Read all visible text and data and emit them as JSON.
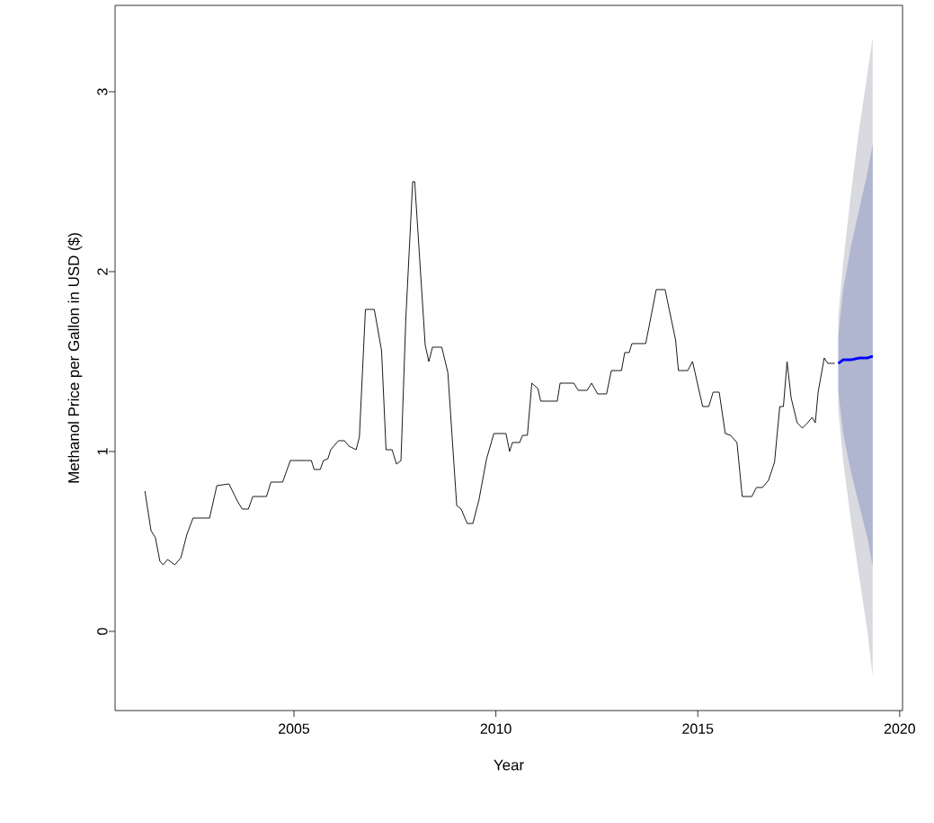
{
  "chart_data": {
    "type": "line",
    "xlabel": "Year",
    "ylabel": "Methanol Price per Gallon in USD ($)",
    "xlim": [
      2000.57,
      2020.07
    ],
    "ylim": [
      -0.44,
      3.48
    ],
    "xticks": [
      2005,
      2010,
      2015,
      2020
    ],
    "yticks": [
      0,
      1,
      2,
      3
    ],
    "grid": false,
    "legend": false,
    "series": [
      {
        "color": "#000000",
        "x": [
          2001.31,
          2001.46,
          2001.57,
          2001.68,
          2001.76,
          2001.87,
          2002.05,
          2002.2,
          2002.35,
          2002.5,
          2002.91,
          2003.09,
          2003.39,
          2003.61,
          2003.72,
          2003.87,
          2003.98,
          2004.32,
          2004.43,
          2004.72,
          2004.91,
          2005.43,
          2005.5,
          2005.65,
          2005.73,
          2005.84,
          2005.91,
          2006.1,
          2006.25,
          2006.36,
          2006.54,
          2006.62,
          2006.77,
          2006.99,
          2007.17,
          2007.28,
          2007.43,
          2007.54,
          2007.65,
          2007.77,
          2007.94,
          2007.99,
          2008.25,
          2008.34,
          2008.43,
          2008.66,
          2008.81,
          2009.03,
          2009.14,
          2009.29,
          2009.43,
          2009.58,
          2009.77,
          2009.95,
          2010.25,
          2010.34,
          2010.41,
          2010.59,
          2010.66,
          2010.78,
          2010.89,
          2011.04,
          2011.11,
          2011.52,
          2011.59,
          2011.93,
          2012.04,
          2012.26,
          2012.37,
          2012.52,
          2012.74,
          2012.86,
          2013.11,
          2013.19,
          2013.3,
          2013.37,
          2013.71,
          2013.78,
          2013.97,
          2014.19,
          2014.45,
          2014.52,
          2014.75,
          2014.87,
          2015.12,
          2015.27,
          2015.38,
          2015.53,
          2015.68,
          2015.81,
          2015.97,
          2016.1,
          2016.34,
          2016.45,
          2016.6,
          2016.75,
          2016.9,
          2017.03,
          2017.12,
          2017.21,
          2017.31,
          2017.46,
          2017.59,
          2017.72,
          2017.83,
          2017.91,
          2017.98,
          2018.13,
          2018.22,
          2018.39
        ],
        "values": [
          0.78,
          0.56,
          0.52,
          0.39,
          0.37,
          0.4,
          0.37,
          0.41,
          0.54,
          0.63,
          0.63,
          0.81,
          0.82,
          0.72,
          0.68,
          0.68,
          0.75,
          0.75,
          0.83,
          0.83,
          0.95,
          0.95,
          0.9,
          0.9,
          0.95,
          0.96,
          1.01,
          1.06,
          1.06,
          1.03,
          1.01,
          1.08,
          1.79,
          1.79,
          1.56,
          1.01,
          1.01,
          0.93,
          0.95,
          1.74,
          2.5,
          2.5,
          1.59,
          1.5,
          1.58,
          1.58,
          1.44,
          0.7,
          0.68,
          0.6,
          0.6,
          0.73,
          0.96,
          1.1,
          1.1,
          1.0,
          1.05,
          1.05,
          1.09,
          1.09,
          1.38,
          1.35,
          1.28,
          1.28,
          1.38,
          1.38,
          1.34,
          1.34,
          1.38,
          1.32,
          1.32,
          1.45,
          1.45,
          1.55,
          1.55,
          1.6,
          1.6,
          1.68,
          1.9,
          1.9,
          1.62,
          1.45,
          1.45,
          1.5,
          1.25,
          1.25,
          1.33,
          1.33,
          1.1,
          1.09,
          1.05,
          0.75,
          0.75,
          0.8,
          0.8,
          0.84,
          0.94,
          1.25,
          1.25,
          1.5,
          1.3,
          1.16,
          1.13,
          1.16,
          1.19,
          1.16,
          1.33,
          1.52,
          1.49,
          1.49
        ]
      },
      {
        "color": "#0000ff",
        "x": [
          2018.48,
          2018.6,
          2018.8,
          2019.0,
          2019.2,
          2019.33
        ],
        "values": [
          1.49,
          1.51,
          1.51,
          1.52,
          1.52,
          1.53
        ],
        "lower": [
          1.23,
          0.95,
          0.6,
          0.3,
          0.0,
          -0.25
        ],
        "upper": [
          1.75,
          2.05,
          2.45,
          2.8,
          3.1,
          3.3
        ]
      },
      {
        "color": "#0000ff",
        "x": [
          2018.48,
          2018.6,
          2018.8,
          2019.0,
          2019.2,
          2019.33
        ],
        "values": [
          1.49,
          1.51,
          1.51,
          1.52,
          1.52,
          1.53
        ],
        "lower": [
          1.33,
          1.1,
          0.88,
          0.7,
          0.52,
          0.36
        ],
        "upper": [
          1.65,
          1.9,
          2.15,
          2.35,
          2.55,
          2.71
        ]
      }
    ]
  }
}
